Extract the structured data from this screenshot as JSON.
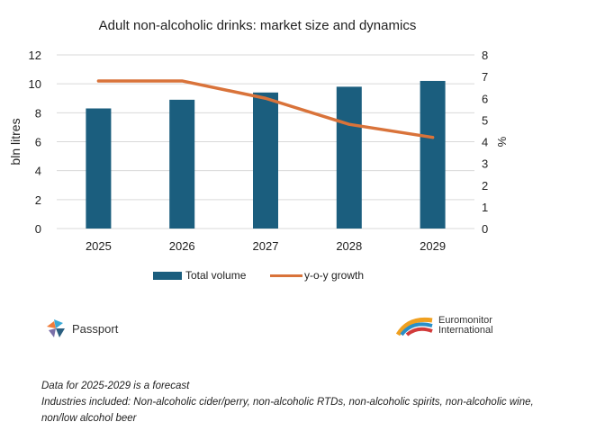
{
  "chart_data": {
    "type": "bar+line",
    "title": "Adult non-alcoholic drinks: market size and dynamics",
    "categories": [
      "2025",
      "2026",
      "2027",
      "2028",
      "2029"
    ],
    "ylabel": "bln litres",
    "y2label": "%",
    "ylim": [
      0,
      12
    ],
    "y2lim": [
      0,
      8
    ],
    "yticks": [
      "0",
      "2",
      "4",
      "6",
      "8",
      "10",
      "12"
    ],
    "y2ticks": [
      "0",
      "1",
      "2",
      "3",
      "4",
      "5",
      "6",
      "7",
      "8"
    ],
    "grid": true,
    "legend_position": "bottom",
    "series": [
      {
        "name": "Total volume",
        "type": "bar",
        "axis": "left",
        "color": "#1b5e7e",
        "values": [
          8.3,
          8.9,
          9.4,
          9.8,
          10.2
        ]
      },
      {
        "name": "y-o-y growth",
        "type": "line",
        "axis": "right",
        "color": "#d9733a",
        "values": [
          6.8,
          6.8,
          6.0,
          4.8,
          4.2
        ]
      }
    ]
  },
  "logos": {
    "left": "Passport",
    "right_line1": "Euromonitor",
    "right_line2": "International"
  },
  "notes": [
    "Data for 2025-2029 is a forecast",
    "Industries included: Non-alcoholic cider/perry, non-alcoholic RTDs, non-alcoholic spirits, non-alcoholic wine,",
    "non/low alcohol beer"
  ]
}
